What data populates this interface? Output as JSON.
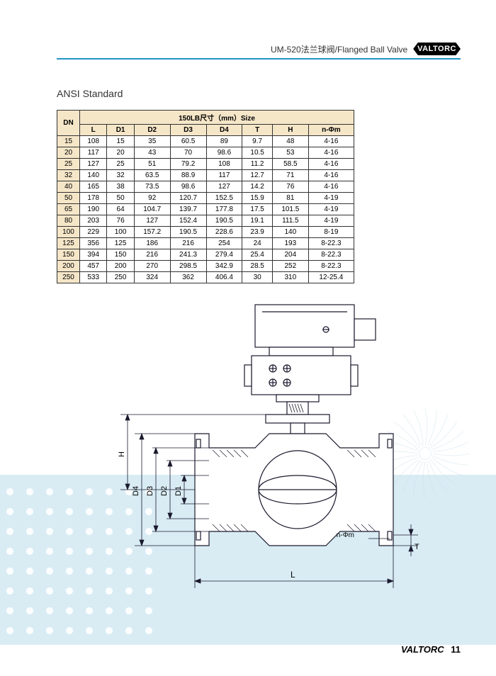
{
  "header": {
    "product_code": "UM-520法兰球阀/Flanged Ball Valve",
    "brand": "VALTORC"
  },
  "section_title": "ANSI Standard",
  "table": {
    "dn_header": "DN",
    "size_header": "150LB尺寸（mm）Size",
    "columns": [
      "L",
      "D1",
      "D2",
      "D3",
      "D4",
      "T",
      "H",
      "n-Φm"
    ],
    "rows": [
      [
        "15",
        "108",
        "15",
        "35",
        "60.5",
        "89",
        "9.7",
        "48",
        "4-16"
      ],
      [
        "20",
        "117",
        "20",
        "43",
        "70",
        "98.6",
        "10.5",
        "53",
        "4-16"
      ],
      [
        "25",
        "127",
        "25",
        "51",
        "79.2",
        "108",
        "11.2",
        "58.5",
        "4-16"
      ],
      [
        "32",
        "140",
        "32",
        "63.5",
        "88.9",
        "117",
        "12.7",
        "71",
        "4-16"
      ],
      [
        "40",
        "165",
        "38",
        "73.5",
        "98.6",
        "127",
        "14.2",
        "76",
        "4-16"
      ],
      [
        "50",
        "178",
        "50",
        "92",
        "120.7",
        "152.5",
        "15.9",
        "81",
        "4-19"
      ],
      [
        "65",
        "190",
        "64",
        "104.7",
        "139.7",
        "177.8",
        "17.5",
        "101.5",
        "4-19"
      ],
      [
        "80",
        "203",
        "76",
        "127",
        "152.4",
        "190.5",
        "19.1",
        "111.5",
        "4-19"
      ],
      [
        "100",
        "229",
        "100",
        "157.2",
        "190.5",
        "228.6",
        "23.9",
        "140",
        "8-19"
      ],
      [
        "125",
        "356",
        "125",
        "186",
        "216",
        "254",
        "24",
        "193",
        "8-22.3"
      ],
      [
        "150",
        "394",
        "150",
        "216",
        "241.3",
        "279.4",
        "25.4",
        "204",
        "8-22.3"
      ],
      [
        "200",
        "457",
        "200",
        "270",
        "298.5",
        "342.9",
        "28.5",
        "252",
        "8-22.3"
      ],
      [
        "250",
        "533",
        "250",
        "324",
        "362",
        "406.4",
        "30",
        "310",
        "12-25.4"
      ]
    ]
  },
  "diagram_labels": {
    "H": "H",
    "D4": "D4",
    "D3": "D3",
    "D2": "D2",
    "D1": "D1",
    "L": "L",
    "T": "T",
    "nphi": "n-Φm"
  },
  "footer": {
    "brand": "VALTORC",
    "page": "11"
  },
  "colors": {
    "blue_line": "#2196c4",
    "table_header_bg": "#f5e6c8",
    "bg_band": "#d9ecf4",
    "stroke": "#1a1a2e"
  }
}
